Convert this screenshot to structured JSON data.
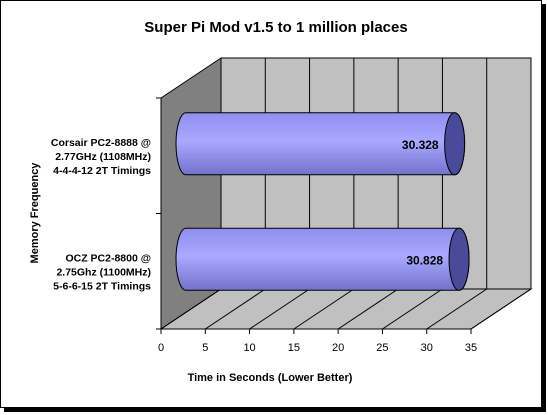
{
  "chart_data": {
    "type": "bar",
    "orientation": "horizontal",
    "style": "3d-cylinder",
    "title": "Super Pi Mod v1.5 to 1 million places",
    "xlabel": "Time in Seconds (Lower Better)",
    "ylabel": "Memory Frequency",
    "xlim": [
      0,
      35
    ],
    "xticks": [
      "0",
      "5",
      "10",
      "15",
      "20",
      "25",
      "30",
      "35"
    ],
    "categories": [
      [
        "Corsair PC2-8888 @",
        "2.77GHz (1108MHz)",
        "4-4-4-12 2T Timings"
      ],
      [
        "OCZ PC2-8800 @",
        "2.75Ghz (1100MHz)",
        "5-6-6-15 2T Timings"
      ]
    ],
    "values": [
      30.328,
      30.828
    ],
    "data_labels": [
      "30.328",
      "30.828"
    ],
    "grid": true,
    "legend": "none",
    "colors": {
      "bar_body": "#9999ff",
      "bar_cap": "#4a4a9a",
      "wall": "#c0c0c0",
      "side_wall": "#808080"
    }
  }
}
